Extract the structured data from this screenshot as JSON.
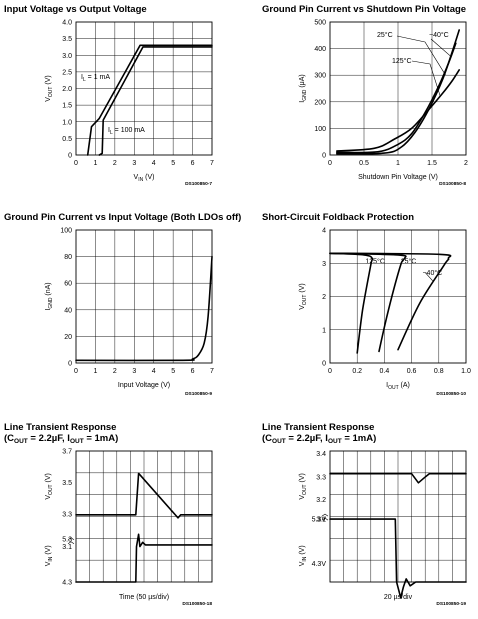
{
  "chart_data": [
    {
      "type": "line",
      "title": "Input Voltage vs Output Voltage",
      "xlabel": "V",
      "xlabel_sub": "IN",
      "xlabel_unit": "(V)",
      "ylabel": "V",
      "ylabel_sub": "OUT",
      "ylabel_unit": "(V)",
      "xlim": [
        0,
        7
      ],
      "ylim": [
        0,
        4
      ],
      "xticks": [
        "0",
        "1",
        "2",
        "3",
        "4",
        "5",
        "6",
        "7"
      ],
      "yticks": [
        "0",
        "0.5",
        "1.0",
        "1.5",
        "2.0",
        "2.5",
        "3.0",
        "3.5",
        "4.0"
      ],
      "code": "DS100850-7",
      "series": [
        {
          "label_main": "I",
          "label_sub": "L",
          "label_value": " = 1 mA",
          "x": [
            0.6,
            0.8,
            1.2,
            3.3,
            7.0
          ],
          "y": [
            0,
            0.85,
            1.1,
            3.3,
            3.3
          ]
        },
        {
          "label_main": "I",
          "label_sub": "L",
          "label_value": " = 100 mA",
          "x": [
            1.2,
            1.35,
            1.4,
            3.45,
            7.0
          ],
          "y": [
            0,
            0.05,
            1.05,
            3.25,
            3.25
          ]
        }
      ]
    },
    {
      "type": "line",
      "title": "Ground Pin Current vs Shutdown Pin Voltage",
      "xlabel": "Shutdown Pin Voltage (V)",
      "ylabel": "I",
      "ylabel_sub": "GND",
      "ylabel_unit": "(μA)",
      "xlim": [
        0,
        2
      ],
      "ylim": [
        0,
        500
      ],
      "xticks": [
        "0",
        "0.5",
        "1",
        "1.5",
        "2"
      ],
      "yticks": [
        "0",
        "100",
        "200",
        "300",
        "400",
        "500"
      ],
      "code": "DS100850-8",
      "series": [
        {
          "name": "25°C",
          "x": [
            0.1,
            0.7,
            1.0,
            1.2,
            1.4,
            1.6,
            1.75,
            1.85
          ],
          "y": [
            10,
            12,
            40,
            80,
            160,
            260,
            350,
            420
          ]
        },
        {
          "name": "−40°C",
          "x": [
            0.1,
            0.8,
            1.05,
            1.25,
            1.45,
            1.65,
            1.8,
            1.9
          ],
          "y": [
            5,
            7,
            30,
            85,
            170,
            280,
            390,
            470
          ]
        },
        {
          "name": "125°C",
          "x": [
            0.1,
            0.65,
            0.95,
            1.2,
            1.45,
            1.65,
            1.8,
            1.9
          ],
          "y": [
            15,
            25,
            60,
            100,
            170,
            230,
            280,
            320
          ]
        }
      ]
    },
    {
      "type": "line",
      "title": "Ground Pin Current vs Input Voltage (Both LDOs off)",
      "xlabel": "Input Voltage (V)",
      "ylabel": "I",
      "ylabel_sub": "GND",
      "ylabel_unit": "(nA)",
      "xlim": [
        0,
        7
      ],
      "ylim": [
        0,
        100
      ],
      "xticks": [
        "0",
        "1",
        "2",
        "3",
        "4",
        "5",
        "6",
        "7"
      ],
      "yticks": [
        "0",
        "20",
        "40",
        "60",
        "80",
        "100"
      ],
      "code": "DS100850-9",
      "series": [
        {
          "x": [
            0,
            5.5,
            6.0,
            6.3,
            6.6,
            6.8,
            7.0
          ],
          "y": [
            2,
            2,
            3,
            6,
            15,
            35,
            80
          ]
        }
      ]
    },
    {
      "type": "line",
      "title": "Short-Circuit Foldback Protection",
      "xlabel": "I",
      "xlabel_sub": "OUT",
      "xlabel_unit": "(A)",
      "ylabel": "V",
      "ylabel_sub": "OUT",
      "ylabel_unit": "(V)",
      "xlim": [
        0,
        1.0
      ],
      "ylim": [
        0,
        4
      ],
      "xticks": [
        "0",
        "0.2",
        "0.4",
        "0.6",
        "0.8",
        "1.0"
      ],
      "yticks": [
        "0",
        "1",
        "2",
        "3",
        "4"
      ],
      "code": "DS100850-10",
      "series": [
        {
          "name": "125°C",
          "x": [
            0.0,
            0.25,
            0.31,
            0.3,
            0.24,
            0.2
          ],
          "y": [
            3.3,
            3.25,
            3.15,
            2.95,
            1.6,
            0.3
          ]
        },
        {
          "name": "25°C",
          "x": [
            0.0,
            0.5,
            0.55,
            0.52,
            0.43,
            0.36
          ],
          "y": [
            3.3,
            3.25,
            3.15,
            2.95,
            1.6,
            0.35
          ]
        },
        {
          "name": "−40°C",
          "x": [
            0.0,
            0.8,
            0.87,
            0.84,
            0.66,
            0.5
          ],
          "y": [
            3.3,
            3.27,
            3.15,
            2.95,
            1.8,
            0.4
          ]
        }
      ]
    },
    {
      "type": "line",
      "title": "Line Transient Response",
      "subtitle_prefix": "(C",
      "subtitle_sub1": "OUT",
      "subtitle_mid": " = 2.2µF, I",
      "subtitle_sub2": "OUT",
      "subtitle_suffix": " = 1mA)",
      "xlabel": "Time (50 µs/div)",
      "ylabel_top": "V",
      "ylabel_top_sub": "OUT",
      "ylabel_top_unit": "(V)",
      "ylabel_bottom": "V",
      "ylabel_bottom_sub": "IN",
      "ylabel_bottom_unit": "(V)",
      "yticks_top": [
        "3.7",
        "3.5",
        "3.3",
        "3.1"
      ],
      "yticks_bottom": [
        "5.3",
        "4.3"
      ],
      "divisions": 10,
      "code": "DS100850-18",
      "output_trace": {
        "t_div": [
          0,
          4.4,
          4.6,
          7.5,
          7.7,
          10
        ],
        "y": [
          3.3,
          3.3,
          3.56,
          3.28,
          3.3,
          3.3
        ]
      },
      "input_trace": {
        "t_div": [
          0,
          4.4,
          4.45,
          4.6,
          4.7,
          4.9,
          5.1,
          10
        ],
        "y": [
          4.3,
          4.3,
          5.3,
          5.65,
          5.3,
          5.42,
          5.35,
          5.35
        ]
      }
    },
    {
      "type": "line",
      "title": "Line Transient Response",
      "subtitle_prefix": "(C",
      "subtitle_sub1": "OUT",
      "subtitle_mid": " = 2.2µF, I",
      "subtitle_sub2": "OUT",
      "subtitle_suffix": " = 1mA)",
      "xlabel": "20 µs/div",
      "ylabel_top": "V",
      "ylabel_top_sub": "OUT",
      "ylabel_top_unit": "(V)",
      "ylabel_bottom": "V",
      "ylabel_bottom_sub": "IN",
      "ylabel_bottom_unit": "(V)",
      "yticks_top": [
        "3.4",
        "3.3",
        "3.2",
        "3.1"
      ],
      "yticks_bottom": [
        "5.3V",
        "4.3V"
      ],
      "divisions": 10,
      "code": "DS100850-19",
      "output_trace": {
        "t_div": [
          0,
          6.0,
          6.5,
          6.9,
          7.3,
          10
        ],
        "y": [
          3.3,
          3.3,
          3.26,
          3.28,
          3.3,
          3.3
        ]
      },
      "input_trace": {
        "t_div": [
          0,
          4.8,
          4.9,
          5.2,
          5.4,
          5.6,
          5.9,
          6.3,
          10
        ],
        "y": [
          5.3,
          5.3,
          4.3,
          4.05,
          4.22,
          4.35,
          4.24,
          4.3,
          4.3
        ]
      }
    }
  ]
}
